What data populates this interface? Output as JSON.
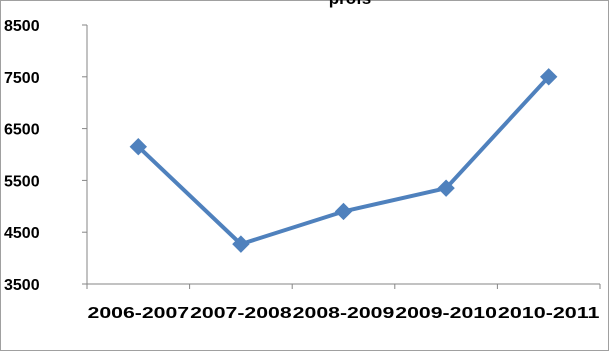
{
  "chart_data": {
    "type": "line",
    "title": "profs",
    "xlabel": "",
    "ylabel": "",
    "categories": [
      "2006-2007",
      "2007-2008",
      "2008-2009",
      "2009-2010",
      "2010-2011"
    ],
    "series": [
      {
        "values": [
          6150,
          4270,
          4900,
          5350,
          7500
        ],
        "color": "#4f81bd"
      }
    ],
    "ylim": [
      3500,
      8500
    ],
    "yticks": [
      3500,
      4500,
      5500,
      6500,
      7500,
      8500
    ],
    "grid": false,
    "legend": "none",
    "marker": "diamond"
  }
}
